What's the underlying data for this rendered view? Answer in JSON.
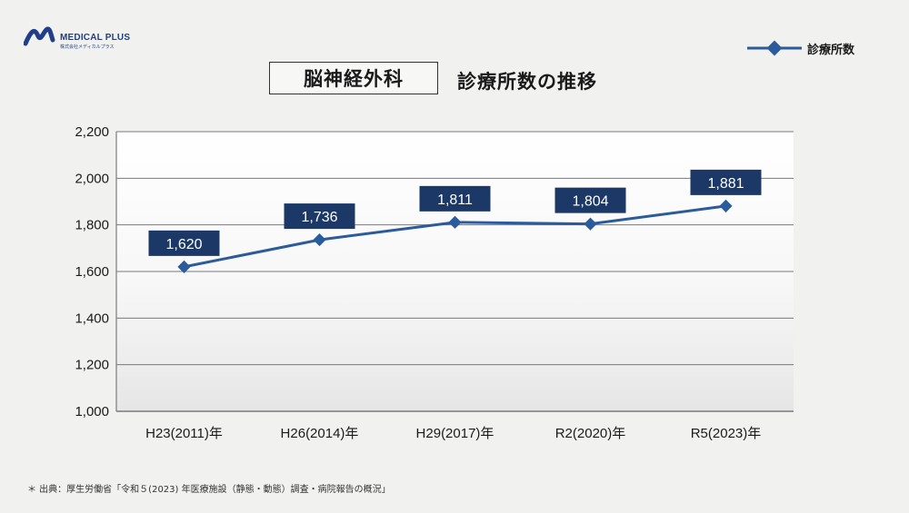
{
  "logo": {
    "name": "MEDICAL PLUS",
    "sub": "株式会社メディカルプラス"
  },
  "title": {
    "boxed": "脳神経外科",
    "main": "診療所数の推移"
  },
  "legend": {
    "label": "診療所数"
  },
  "footnote": "＊ 出典：厚生労働省「令和５(2023) 年医療施設（静態・動態）調査・病院報告の概況」",
  "colors": {
    "line": "#2b5b9a",
    "label_box": "#1c3867",
    "grid": "#7a7a7a",
    "brand": "#1f3f8a"
  },
  "chart_data": {
    "type": "line",
    "categories": [
      "H23(2011)年",
      "H26(2014)年",
      "H29(2017)年",
      "R2(2020)年",
      "R5(2023)年"
    ],
    "series": [
      {
        "name": "診療所数",
        "values": [
          1620,
          1736,
          1811,
          1804,
          1881
        ]
      }
    ],
    "data_labels": [
      "1,620",
      "1,736",
      "1,811",
      "1,804",
      "1,881"
    ],
    "yticks": [
      "1,000",
      "1,200",
      "1,400",
      "1,600",
      "1,800",
      "2,000",
      "2,200"
    ],
    "ylim": [
      1000,
      2200
    ],
    "title": "脳神経外科 診療所数の推移",
    "grid": true,
    "legend_position": "top-right",
    "marker": "diamond"
  }
}
